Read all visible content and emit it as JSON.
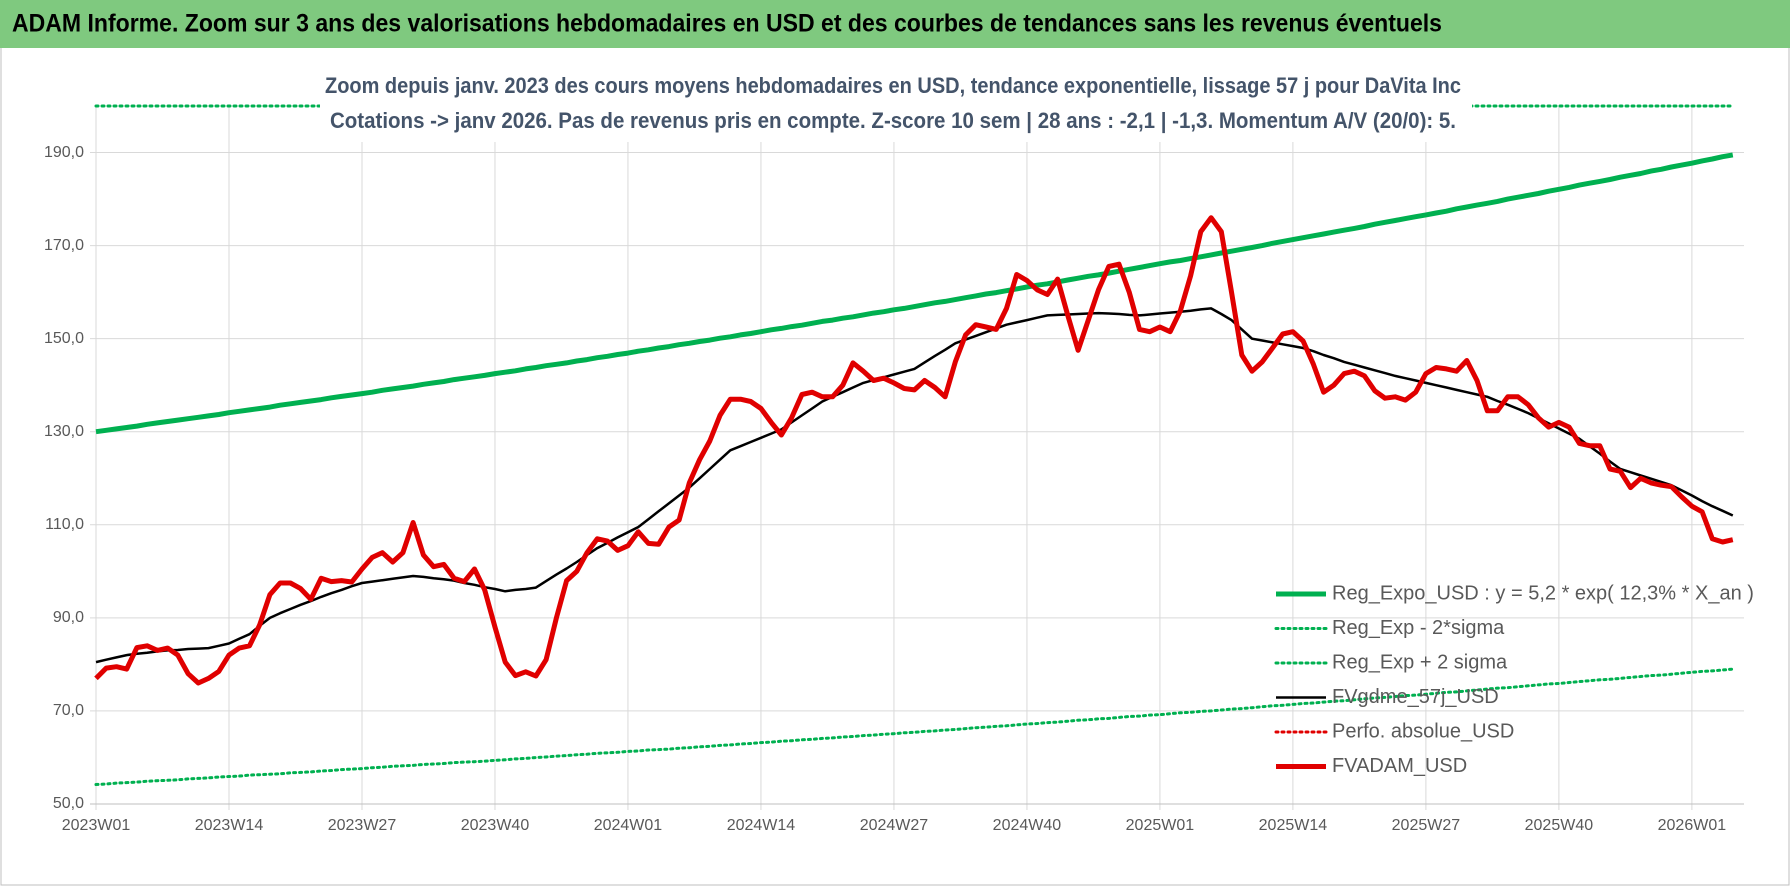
{
  "chart_data": {
    "type": "line",
    "title": "ADAM Informe. Zoom sur 3 ans des valorisations hebdomadaires en USD et des courbes de tendances sans les revenus éventuels",
    "subtitle": [
      "Zoom depuis janv. 2023 des cours moyens hebdomadaires en USD, tendance exponentielle, lissage 57 j pour DaVita Inc",
      "Cotations -> janv 2026. Pas de revenus pris en compte. Z-score 10 sem | 28 ans : -2,1 | -1,3. Momentum A/V (20/0): 5."
    ],
    "categories": [
      "2023W01",
      null,
      null,
      null,
      null,
      null,
      null,
      null,
      null,
      null,
      null,
      null,
      null,
      "2023W14",
      null,
      null,
      null,
      null,
      null,
      null,
      null,
      null,
      null,
      null,
      null,
      null,
      "2023W27",
      null,
      null,
      null,
      null,
      null,
      null,
      null,
      null,
      null,
      null,
      null,
      null,
      "2023W40",
      null,
      null,
      null,
      null,
      null,
      null,
      null,
      null,
      null,
      null,
      null,
      null,
      "2024W01",
      null,
      null,
      null,
      null,
      null,
      null,
      null,
      null,
      null,
      null,
      null,
      null,
      "2024W14",
      null,
      null,
      null,
      null,
      null,
      null,
      null,
      null,
      null,
      null,
      null,
      null,
      "2024W27",
      null,
      null,
      null,
      null,
      null,
      null,
      null,
      null,
      null,
      null,
      null,
      null,
      "2024W40",
      null,
      null,
      null,
      null,
      null,
      null,
      null,
      null,
      null,
      null,
      null,
      null,
      "2025W01",
      null,
      null,
      null,
      null,
      null,
      null,
      null,
      null,
      null,
      null,
      null,
      null,
      "2025W14",
      null,
      null,
      null,
      null,
      null,
      null,
      null,
      null,
      null,
      null,
      null,
      null,
      "2025W27",
      null,
      null,
      null,
      null,
      null,
      null,
      null,
      null,
      null,
      null,
      null,
      null,
      "2025W40",
      null,
      null,
      null,
      null,
      null,
      null,
      null,
      null,
      null,
      null,
      null,
      null,
      "2026W01",
      null,
      null,
      null,
      null
    ],
    "ylim": [
      50,
      200
    ],
    "yticks": [
      {
        "value": 50,
        "label": "50,0"
      },
      {
        "value": 70,
        "label": "70,0"
      },
      {
        "value": 90,
        "label": "90,0"
      },
      {
        "value": 110,
        "label": "110,0"
      },
      {
        "value": 130,
        "label": "130,0"
      },
      {
        "value": 150,
        "label": "150,0"
      },
      {
        "value": 170,
        "label": "170,0"
      },
      {
        "value": 190,
        "label": "190,0"
      }
    ],
    "grid": true,
    "legend": "lower right",
    "series": [
      {
        "name": "Reg_Expo_USD : y = 5,2 * exp( 12,3% *  X_an )",
        "color": "#00b050",
        "line_style": "thick",
        "values": [
          130.0,
          130.3,
          130.6,
          130.9,
          131.2,
          131.6,
          131.9,
          132.2,
          132.5,
          132.8,
          133.1,
          133.4,
          133.7,
          134.1,
          134.4,
          134.7,
          135.0,
          135.3,
          135.7,
          136.0,
          136.3,
          136.6,
          136.9,
          137.3,
          137.6,
          137.9,
          138.2,
          138.5,
          138.9,
          139.2,
          139.5,
          139.8,
          140.2,
          140.5,
          140.8,
          141.2,
          141.5,
          141.8,
          142.1,
          142.5,
          142.8,
          143.1,
          143.5,
          143.8,
          144.2,
          144.5,
          144.8,
          145.2,
          145.5,
          145.9,
          146.2,
          146.6,
          146.9,
          147.3,
          147.6,
          148.0,
          148.3,
          148.7,
          149.0,
          149.4,
          149.7,
          150.1,
          150.4,
          150.8,
          151.1,
          151.5,
          151.9,
          152.2,
          152.6,
          152.9,
          153.3,
          153.7,
          154.0,
          154.4,
          154.7,
          155.1,
          155.5,
          155.8,
          156.2,
          156.5,
          156.9,
          157.3,
          157.7,
          158.0,
          158.4,
          158.8,
          159.2,
          159.6,
          159.9,
          160.3,
          160.7,
          161.1,
          161.5,
          161.8,
          162.2,
          162.6,
          163.0,
          163.4,
          163.7,
          164.1,
          164.5,
          164.9,
          165.3,
          165.7,
          166.1,
          166.5,
          166.8,
          167.2,
          167.6,
          168.0,
          168.4,
          168.8,
          169.2,
          169.6,
          170.0,
          170.5,
          170.9,
          171.3,
          171.7,
          172.1,
          172.5,
          172.9,
          173.3,
          173.7,
          174.1,
          174.6,
          175.0,
          175.4,
          175.8,
          176.2,
          176.6,
          177.0,
          177.4,
          177.9,
          178.3,
          178.7,
          179.1,
          179.5,
          180.0,
          180.4,
          180.8,
          181.2,
          181.7,
          182.1,
          182.5,
          183.0,
          183.4,
          183.8,
          184.2,
          184.7,
          185.1,
          185.5,
          186.0,
          186.4,
          186.9,
          187.3,
          187.7,
          188.2,
          188.6,
          189.1,
          189.5
        ]
      },
      {
        "name": "Reg_Exp - 2*sigma",
        "color": "#00b050",
        "line_style": "dotted",
        "values": [
          54.2,
          54.3,
          54.5,
          54.6,
          54.7,
          54.9,
          55.0,
          55.1,
          55.2,
          55.4,
          55.5,
          55.6,
          55.8,
          55.9,
          56.0,
          56.2,
          56.3,
          56.4,
          56.5,
          56.7,
          56.8,
          56.9,
          57.1,
          57.2,
          57.4,
          57.5,
          57.6,
          57.8,
          57.9,
          58.1,
          58.2,
          58.3,
          58.5,
          58.6,
          58.7,
          58.9,
          59.0,
          59.1,
          59.2,
          59.4,
          59.5,
          59.7,
          59.8,
          60.0,
          60.1,
          60.3,
          60.4,
          60.6,
          60.7,
          60.9,
          61.0,
          61.1,
          61.3,
          61.4,
          61.6,
          61.7,
          61.8,
          62.0,
          62.1,
          62.3,
          62.4,
          62.6,
          62.7,
          62.9,
          63.0,
          63.2,
          63.3,
          63.5,
          63.6,
          63.8,
          63.9,
          64.1,
          64.2,
          64.4,
          64.5,
          64.7,
          64.8,
          65.0,
          65.1,
          65.3,
          65.4,
          65.6,
          65.7,
          65.9,
          66.0,
          66.2,
          66.4,
          66.5,
          66.7,
          66.8,
          67.0,
          67.2,
          67.3,
          67.5,
          67.6,
          67.8,
          68.0,
          68.1,
          68.3,
          68.4,
          68.6,
          68.8,
          68.9,
          69.1,
          69.2,
          69.4,
          69.6,
          69.7,
          69.9,
          70.0,
          70.2,
          70.4,
          70.5,
          70.7,
          70.9,
          71.1,
          71.2,
          71.4,
          71.6,
          71.7,
          71.9,
          72.1,
          72.2,
          72.4,
          72.6,
          72.8,
          72.9,
          73.1,
          73.3,
          73.4,
          73.6,
          73.8,
          74.0,
          74.1,
          74.3,
          74.5,
          74.7,
          74.9,
          75.0,
          75.2,
          75.4,
          75.6,
          75.8,
          75.9,
          76.1,
          76.3,
          76.5,
          76.7,
          76.8,
          77.0,
          77.2,
          77.4,
          77.6,
          77.7,
          77.9,
          78.1,
          78.3,
          78.5,
          78.6,
          78.8,
          79.0
        ]
      },
      {
        "name": "Reg_Exp + 2 sigma",
        "color": "#00b050",
        "line_style": "dotted",
        "values": [
          200,
          200,
          200,
          200,
          200,
          200,
          200,
          200,
          200,
          200,
          200,
          200,
          200,
          200,
          200,
          200,
          200,
          200,
          200,
          200,
          200,
          200,
          200,
          200,
          200,
          200,
          200,
          200,
          200,
          200,
          200,
          200,
          200,
          200,
          200,
          200,
          200,
          200,
          200,
          200,
          200,
          200,
          200,
          200,
          200,
          200,
          200,
          200,
          200,
          200,
          200,
          200,
          200,
          200,
          200,
          200,
          200,
          200,
          200,
          200,
          200,
          200,
          200,
          200,
          200,
          200,
          200,
          200,
          200,
          200,
          200,
          200,
          200,
          200,
          200,
          200,
          200,
          200,
          200,
          200,
          200,
          200,
          200,
          200,
          200,
          200,
          200,
          200,
          200,
          200,
          200,
          200,
          200,
          200,
          200,
          200,
          200,
          200,
          200,
          200,
          200,
          200,
          200,
          200,
          200,
          200,
          200,
          200,
          200,
          200,
          200,
          200,
          200,
          200,
          200,
          200,
          200,
          200,
          200,
          200,
          200,
          200,
          200,
          200,
          200,
          200,
          200,
          200,
          200,
          200,
          200,
          200,
          200,
          200,
          200,
          200,
          200,
          200,
          200,
          200,
          200,
          200,
          200,
          200,
          200,
          200,
          200,
          200,
          200,
          200,
          200,
          200,
          200,
          200,
          200,
          200,
          200,
          200,
          200,
          200,
          200
        ]
      },
      {
        "name": "FVgdme_57j_USD",
        "color": "#000000",
        "line_style": "thin",
        "values": [
          80.5,
          81,
          81.5,
          82,
          82.3,
          82.5,
          82.8,
          83,
          83.1,
          83.3,
          83.4,
          83.5,
          84,
          84.5,
          85.5,
          86.5,
          88.3,
          90,
          91,
          91.9,
          92.8,
          93.6,
          94.5,
          95.3,
          96,
          96.8,
          97.5,
          97.8,
          98.1,
          98.4,
          98.7,
          99,
          98.8,
          98.5,
          98.3,
          98,
          97.5,
          97.1,
          96.6,
          96.2,
          95.7,
          96,
          96.2,
          96.5,
          97.9,
          99.3,
          100.6,
          102,
          103.5,
          105,
          106.1,
          107.3,
          108.4,
          109.5,
          111.2,
          112.9,
          114.6,
          116.3,
          118,
          120,
          122,
          124,
          126,
          126.9,
          127.8,
          128.7,
          129.6,
          130.5,
          132,
          133.5,
          135,
          136.5,
          137.5,
          138.5,
          139.5,
          140.5,
          141.1,
          141.7,
          142.3,
          142.9,
          143.5,
          144.9,
          146.3,
          147.6,
          149,
          149.8,
          150.6,
          151.4,
          152.2,
          153,
          153.5,
          154,
          154.5,
          155,
          155.1,
          155.2,
          155.3,
          155.4,
          155.5,
          155.4,
          155.3,
          155.1,
          155,
          155.2,
          155.4,
          155.6,
          155.8,
          156,
          156.3,
          156.5,
          155.3,
          154,
          152,
          150,
          149.6,
          149.2,
          148.8,
          148.4,
          148,
          147.3,
          146.5,
          145.8,
          145,
          144.4,
          143.8,
          143.2,
          142.6,
          142,
          141.5,
          141,
          140.5,
          140,
          139.5,
          139,
          138.5,
          138,
          137.5,
          136.6,
          135.8,
          134.9,
          134,
          132.9,
          131.8,
          130.7,
          129.6,
          128.5,
          126.9,
          125.3,
          123.6,
          122,
          121.3,
          120.6,
          119.9,
          119.2,
          118.5,
          117.4,
          116.3,
          115.1,
          114,
          113,
          112
        ]
      },
      {
        "name": "Perfo. absolue_USD",
        "color": "#e00000",
        "line_style": "dotted",
        "values": [
          null,
          null,
          null,
          null,
          null,
          null,
          null,
          null,
          null,
          null,
          null,
          null,
          null,
          null,
          null,
          null,
          null,
          null,
          null,
          null,
          null,
          null,
          null,
          null,
          null,
          null,
          null,
          null,
          null,
          null,
          null,
          null,
          null,
          null,
          null,
          null,
          null,
          null,
          null,
          null,
          null,
          null,
          null,
          null,
          null,
          null,
          null,
          null,
          null,
          null,
          null,
          null,
          null,
          null,
          null,
          null,
          null,
          null,
          null,
          null,
          null,
          null,
          null,
          null,
          null,
          null,
          null,
          null,
          null,
          null,
          null,
          null,
          null,
          null,
          null,
          null,
          null,
          null,
          null,
          null,
          null,
          null,
          null,
          null,
          null,
          null,
          null,
          null,
          null,
          null,
          null,
          null,
          null,
          null,
          null,
          null,
          null,
          null,
          null,
          null,
          null,
          null,
          null,
          null,
          null,
          null,
          null,
          null,
          null,
          null,
          null,
          null,
          null,
          null,
          null,
          null,
          null,
          null,
          null,
          null,
          null,
          null,
          null,
          null,
          null,
          null,
          null,
          null,
          null,
          null,
          null,
          null,
          null,
          null,
          null,
          null,
          null,
          null,
          null,
          null,
          null,
          null,
          null,
          null,
          null,
          null,
          null,
          null,
          null,
          null,
          null,
          null,
          null,
          null,
          null,
          null,
          null,
          null,
          null,
          null,
          null
        ]
      },
      {
        "name": "FVADAM_USD",
        "color": "#e00000",
        "line_style": "thick",
        "values": [
          77,
          79.2,
          79.5,
          79,
          83.6,
          84,
          83,
          83.5,
          82,
          78,
          76,
          77,
          78.5,
          82,
          83.5,
          84,
          88.5,
          95,
          97.5,
          97.5,
          96.3,
          94,
          98.5,
          97.8,
          98,
          97.7,
          100.5,
          103,
          104,
          102,
          104,
          110.5,
          103.5,
          101,
          101.5,
          98.5,
          97.8,
          100.5,
          96,
          88,
          80.5,
          77.6,
          78.4,
          77.5,
          81,
          90,
          98,
          100,
          104,
          107,
          106.5,
          104.5,
          105.5,
          108.5,
          106,
          105.8,
          109.5,
          111,
          119,
          124,
          128,
          133.5,
          137,
          137,
          136.5,
          135,
          132,
          129.3,
          133,
          138,
          138.5,
          137.5,
          137.5,
          140,
          144.8,
          143,
          141,
          141.5,
          140.5,
          139.3,
          139,
          141,
          139.5,
          137.5,
          145,
          150.8,
          153,
          152.5,
          152,
          156.5,
          163.8,
          162.5,
          160.5,
          159.5,
          162.8,
          155,
          147.5,
          154,
          160.5,
          165.5,
          166,
          160,
          152,
          151.5,
          152.5,
          151.5,
          156,
          163.5,
          173,
          176,
          173,
          160,
          146.5,
          143,
          145,
          148,
          151,
          151.5,
          149.5,
          144.5,
          138.5,
          140,
          142.5,
          143,
          142,
          138.8,
          137.2,
          137.5,
          136.8,
          138.5,
          142.5,
          143.8,
          143.5,
          143,
          145.3,
          141,
          134.5,
          134.5,
          137.5,
          137.5,
          135.8,
          133,
          131,
          132,
          131,
          127.5,
          127,
          127,
          122,
          121.5,
          118,
          120,
          119,
          118.5,
          118.2,
          116,
          114,
          112.8,
          107,
          106.3,
          106.8
        ]
      }
    ]
  }
}
